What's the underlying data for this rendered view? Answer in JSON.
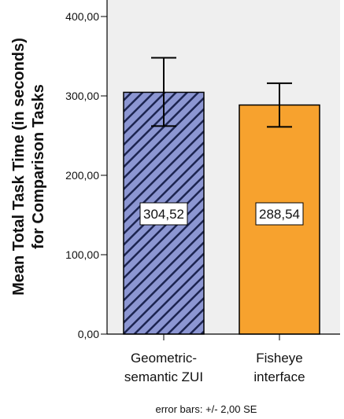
{
  "chart_data": {
    "type": "bar",
    "categories": [
      "Geometric-semantic ZUI",
      "Fisheye interface"
    ],
    "category_label_lines": [
      [
        "Geometric-",
        "semantic ZUI"
      ],
      [
        "Fisheye",
        "interface"
      ]
    ],
    "values": [
      304.52,
      288.54
    ],
    "value_labels": [
      "304,52",
      "288,54"
    ],
    "error_bars": [
      {
        "low": 262,
        "high": 348
      },
      {
        "low": 261,
        "high": 316
      }
    ],
    "ylabel_lines": [
      "Mean Total Task Time (in seconds)",
      "for Comparison Tasks"
    ],
    "ylim": [
      0,
      400
    ],
    "yticks": [
      0,
      100,
      200,
      300,
      400
    ],
    "ytick_labels": [
      "0,00",
      "100,00",
      "200,00",
      "300,00",
      "400,00"
    ],
    "footnote": "error bars: +/- 2,00 SE",
    "grid": false,
    "bar_colors": [
      "#8c96d2",
      "#f7a22e"
    ],
    "hatch_colors": [
      "#1c2450"
    ],
    "plot_background": "#efefef"
  }
}
